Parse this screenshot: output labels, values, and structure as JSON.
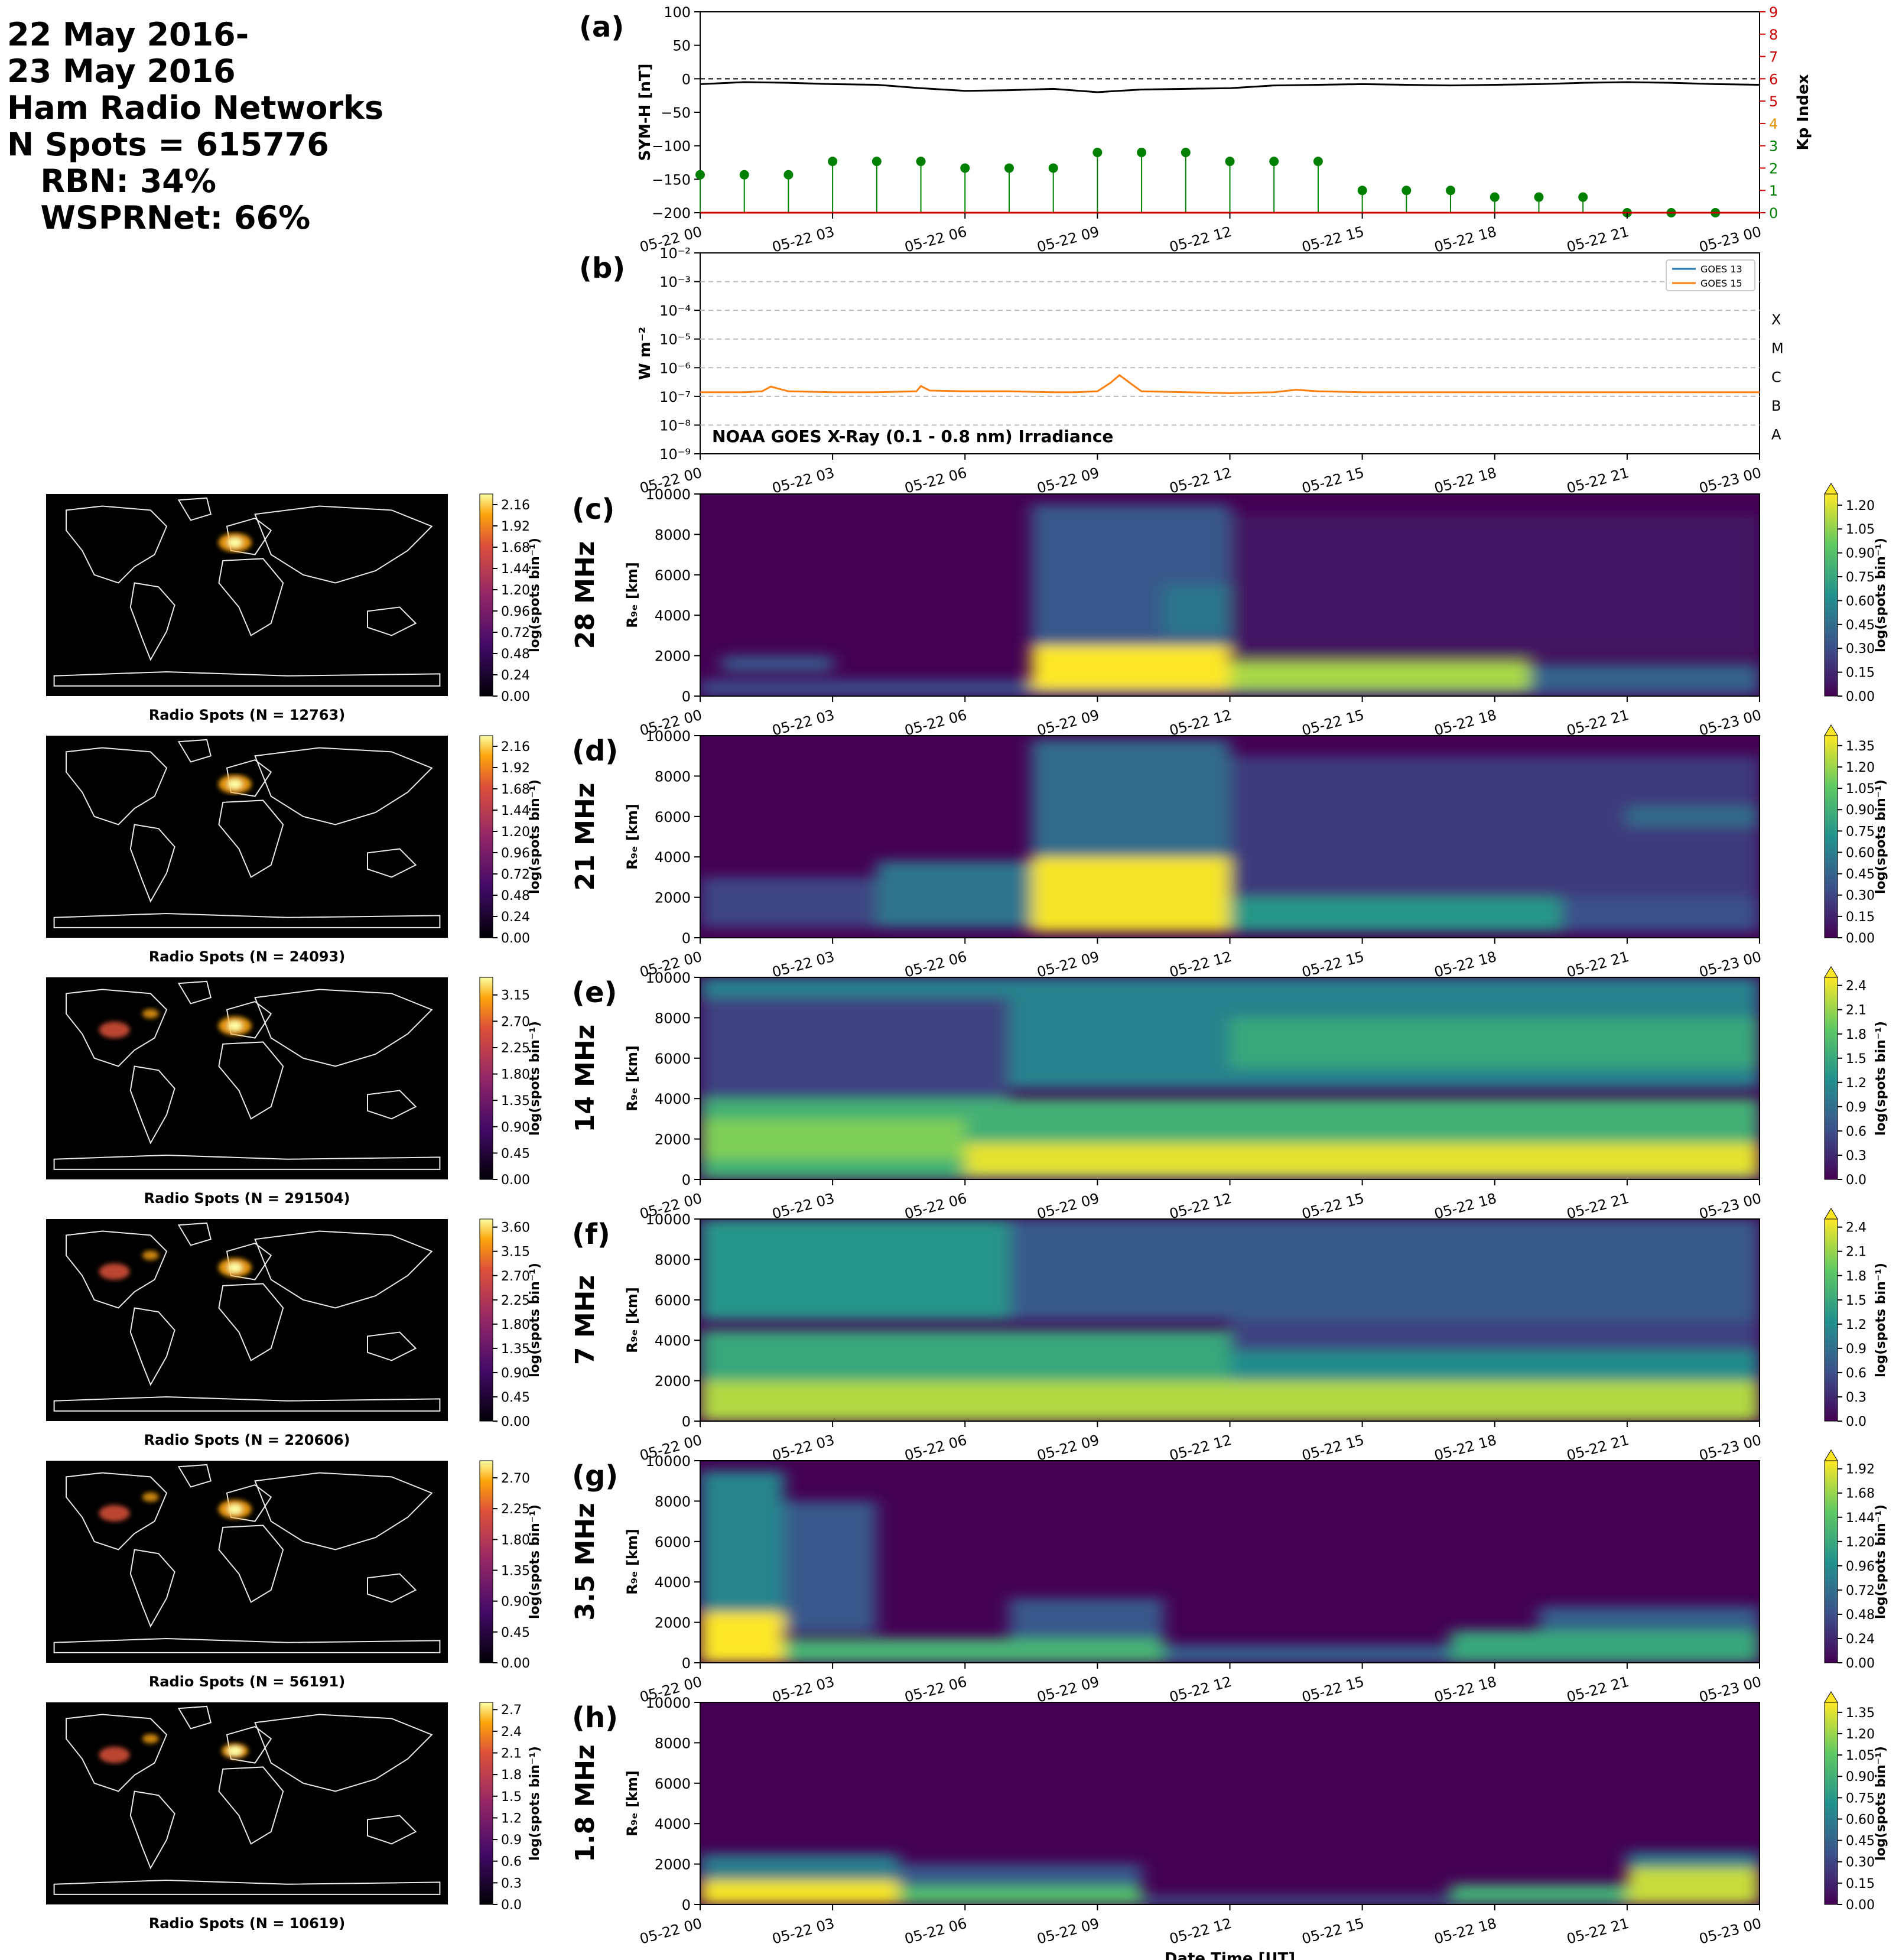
{
  "header": {
    "lines": [
      "22 May 2016-",
      "23 May 2016",
      "Ham Radio Networks",
      "N Spots = 615776",
      "   RBN: 34%",
      "   WSPRNet: 66%"
    ]
  },
  "time_ticks": [
    "05-22 00",
    "05-22 03",
    "05-22 06",
    "05-22 09",
    "05-22 12",
    "05-22 15",
    "05-22 18",
    "05-22 21",
    "05-23 00"
  ],
  "xlabel": "Date Time [UT]",
  "colors": {
    "symh": "#000000",
    "kp_stems": "#008000",
    "kp_axis": "#cc0000",
    "goes13": "#1f77b4",
    "goes15": "#ff7f0e",
    "map_bg": "#000000"
  },
  "chart_data": [
    {
      "type": "line",
      "panel_label": "(a)",
      "ylabel": "SYM-H [nT]",
      "ylim": [
        -200,
        100
      ],
      "yticks": [
        "100",
        "50",
        "0",
        "−50",
        "−100",
        "−150",
        "−200"
      ],
      "y2label": "Kp Index",
      "y2lim": [
        0,
        9
      ],
      "y2ticks": [
        "0",
        "1",
        "2",
        "3",
        "4",
        "5",
        "6",
        "7",
        "8",
        "9"
      ],
      "series": [
        {
          "x_hours": [
            0,
            1,
            2,
            3,
            4,
            5,
            6,
            7,
            8,
            9,
            10,
            11,
            12,
            13,
            14,
            15,
            16,
            17,
            18,
            19,
            20,
            21,
            22,
            23,
            24
          ],
          "values": [
            -8,
            -5,
            -6,
            -8,
            -9,
            -14,
            -18,
            -17,
            -15,
            -20,
            -16,
            -15,
            -14,
            -10,
            -9,
            -8,
            -9,
            -10,
            -9,
            -8,
            -6,
            -5,
            -6,
            -8,
            -9
          ]
        },
        {
          "x_hours": [
            0,
            1,
            2,
            3,
            4,
            5,
            6,
            7,
            8,
            9,
            10,
            11,
            12,
            13,
            14,
            15,
            16,
            17,
            18,
            19,
            20,
            21,
            22,
            23
          ],
          "values": [
            1.7,
            1.7,
            1.7,
            2.3,
            2.3,
            2.3,
            2.0,
            2.0,
            2.0,
            2.7,
            2.7,
            2.7,
            2.3,
            2.3,
            2.3,
            1.0,
            1.0,
            1.0,
            0.7,
            0.7,
            0.7,
            0.0,
            0.0,
            0.0
          ]
        }
      ]
    },
    {
      "type": "line",
      "panel_label": "(b)",
      "ylabel": "W m⁻²",
      "ylim_exp": [
        -9,
        -2
      ],
      "yticks": [
        "10⁻²",
        "10⁻³",
        "10⁻⁴",
        "10⁻⁵",
        "10⁻⁶",
        "10⁻⁷",
        "10⁻⁸",
        "10⁻⁹"
      ],
      "flare_classes": [
        "X",
        "M",
        "C",
        "B",
        "A"
      ],
      "annotation": "NOAA GOES X-Ray (0.1 - 0.8 nm) Irradiance",
      "series": [
        {
          "name": "GOES 13",
          "x_hours": [],
          "values": []
        },
        {
          "name": "GOES 15",
          "x_hours": [
            0,
            1,
            1.4,
            1.6,
            2,
            3,
            4,
            4.9,
            5.0,
            5.2,
            6,
            7,
            8,
            8.5,
            9,
            9.3,
            9.5,
            9.8,
            10,
            11,
            12,
            13,
            13.5,
            14,
            15,
            16,
            17,
            18,
            19,
            20,
            21,
            22,
            23,
            24
          ],
          "values": [
            1.4e-07,
            1.4e-07,
            1.5e-07,
            2.2e-07,
            1.5e-07,
            1.4e-07,
            1.4e-07,
            1.5e-07,
            2.3e-07,
            1.6e-07,
            1.5e-07,
            1.5e-07,
            1.4e-07,
            1.4e-07,
            1.5e-07,
            3e-07,
            5.5e-07,
            2.5e-07,
            1.5e-07,
            1.4e-07,
            1.3e-07,
            1.4e-07,
            1.7e-07,
            1.5e-07,
            1.4e-07,
            1.4e-07,
            1.4e-07,
            1.4e-07,
            1.4e-07,
            1.4e-07,
            1.4e-07,
            1.4e-07,
            1.4e-07,
            1.4e-07
          ]
        }
      ]
    },
    {
      "type": "heatmap",
      "panel_label": "(c)",
      "band": "28 MHz",
      "ylabel": "R₉ₑ [km]",
      "ylim": [
        0,
        10000
      ],
      "cb_label": "log(spots bin⁻¹)",
      "cb_ticks": [
        "0.00",
        "0.15",
        "0.30",
        "0.45",
        "0.60",
        "0.75",
        "0.90",
        "1.05",
        "1.20"
      ],
      "cb_max": 1.27,
      "map_caption": "Radio Spots (N = 12763)",
      "map_cb_ticks": [
        "0.00",
        "0.24",
        "0.48",
        "0.72",
        "0.96",
        "1.20",
        "1.44",
        "1.68",
        "1.92",
        "2.16"
      ],
      "map_cb_max": 2.28,
      "activity": [
        [
          0,
          24,
          0,
          800,
          0.3
        ],
        [
          0.5,
          3,
          1200,
          2000,
          0.35
        ],
        [
          7.5,
          12,
          300,
          2500,
          1.3
        ],
        [
          12,
          18.8,
          300,
          1800,
          1.1
        ],
        [
          18.8,
          24,
          300,
          1600,
          0.4
        ],
        [
          7.5,
          12,
          2500,
          9500,
          0.35
        ],
        [
          10.5,
          12,
          3000,
          5500,
          0.5
        ],
        [
          12,
          24,
          2000,
          9000,
          0.08
        ]
      ]
    },
    {
      "type": "heatmap",
      "panel_label": "(d)",
      "band": "21 MHz",
      "ylabel": "R₉ₑ [km]",
      "ylim": [
        0,
        10000
      ],
      "cb_label": "log(spots bin⁻¹)",
      "cb_ticks": [
        "0.00",
        "0.15",
        "0.30",
        "0.45",
        "0.60",
        "0.75",
        "0.90",
        "1.05",
        "1.20",
        "1.35"
      ],
      "cb_max": 1.42,
      "map_caption": "Radio Spots (N = 24093)",
      "map_cb_ticks": [
        "0.00",
        "0.24",
        "0.48",
        "0.72",
        "0.96",
        "1.20",
        "1.44",
        "1.68",
        "1.92",
        "2.16"
      ],
      "map_cb_max": 2.28,
      "activity": [
        [
          0,
          4,
          500,
          3000,
          0.3
        ],
        [
          4,
          7.5,
          500,
          3800,
          0.55
        ],
        [
          7.5,
          12,
          300,
          4000,
          1.4
        ],
        [
          7.5,
          12,
          4000,
          9800,
          0.5
        ],
        [
          12,
          19.5,
          300,
          2000,
          0.75
        ],
        [
          12,
          24,
          2000,
          9000,
          0.25
        ],
        [
          19.5,
          24,
          300,
          2000,
          0.35
        ],
        [
          21,
          24,
          5500,
          6500,
          0.5
        ]
      ]
    },
    {
      "type": "heatmap",
      "panel_label": "(e)",
      "band": "14 MHz",
      "ylabel": "R₉ₑ [km]",
      "ylim": [
        0,
        10000
      ],
      "cb_label": "log(spots bin⁻¹)",
      "cb_ticks": [
        "0.0",
        "0.3",
        "0.6",
        "0.9",
        "1.2",
        "1.5",
        "1.8",
        "2.1",
        "2.4"
      ],
      "cb_max": 2.5,
      "map_caption": "Radio Spots (N = 291504)",
      "map_cb_ticks": [
        "0.00",
        "0.45",
        "0.90",
        "1.35",
        "1.80",
        "2.25",
        "2.70",
        "3.15"
      ],
      "map_cb_max": 3.45,
      "activity": [
        [
          0,
          24,
          0,
          4000,
          1.6
        ],
        [
          6,
          24,
          200,
          1800,
          2.4
        ],
        [
          0,
          6,
          1000,
          3000,
          2.0
        ],
        [
          0,
          24,
          4500,
          10000,
          1.1
        ],
        [
          12,
          24,
          5500,
          8000,
          1.5
        ],
        [
          0,
          7,
          4000,
          9000,
          0.5
        ]
      ]
    },
    {
      "type": "heatmap",
      "panel_label": "(f)",
      "band": "7 MHz",
      "ylabel": "R₉ₑ [km]",
      "ylim": [
        0,
        10000
      ],
      "cb_label": "log(spots bin⁻¹)",
      "cb_ticks": [
        "0.0",
        "0.3",
        "0.6",
        "0.9",
        "1.2",
        "1.5",
        "1.8",
        "2.1",
        "2.4"
      ],
      "cb_max": 2.5,
      "map_caption": "Radio Spots (N = 220606)",
      "map_cb_ticks": [
        "0.00",
        "0.45",
        "0.90",
        "1.35",
        "1.80",
        "2.25",
        "2.70",
        "3.15",
        "3.60"
      ],
      "map_cb_max": 3.75,
      "activity": [
        [
          0,
          24,
          0,
          2000,
          2.2
        ],
        [
          0,
          12,
          2000,
          4500,
          1.5
        ],
        [
          0,
          7,
          5000,
          10000,
          1.3
        ],
        [
          7,
          24,
          5000,
          10000,
          0.7
        ],
        [
          12,
          24,
          2000,
          3500,
          1.2
        ],
        [
          12,
          24,
          3500,
          5000,
          0.5
        ]
      ]
    },
    {
      "type": "heatmap",
      "panel_label": "(g)",
      "band": "3.5 MHz",
      "ylabel": "R₉ₑ [km]",
      "ylim": [
        0,
        10000
      ],
      "cb_label": "log(spots bin⁻¹)",
      "cb_ticks": [
        "0.00",
        "0.24",
        "0.48",
        "0.72",
        "0.96",
        "1.20",
        "1.44",
        "1.68",
        "1.92"
      ],
      "cb_max": 2.0,
      "map_caption": "Radio Spots (N = 56191)",
      "map_cb_ticks": [
        "0.00",
        "0.45",
        "0.90",
        "1.35",
        "1.80",
        "2.25",
        "2.70"
      ],
      "map_cb_max": 2.95,
      "activity": [
        [
          0,
          1.9,
          0,
          2500,
          2.0
        ],
        [
          0,
          1.9,
          2500,
          9500,
          0.9
        ],
        [
          1.9,
          4,
          1500,
          8000,
          0.55
        ],
        [
          1.9,
          10.5,
          0,
          1200,
          1.3
        ],
        [
          7,
          10.5,
          1200,
          3200,
          0.55
        ],
        [
          10.5,
          17,
          0,
          900,
          0.6
        ],
        [
          17,
          24,
          0,
          1600,
          1.2
        ],
        [
          19,
          24,
          1600,
          2800,
          0.6
        ]
      ]
    },
    {
      "type": "heatmap",
      "panel_label": "(h)",
      "band": "1.8 MHz",
      "ylabel": "R₉ₑ [km]",
      "ylim": [
        0,
        10000
      ],
      "cb_label": "log(spots bin⁻¹)",
      "cb_ticks": [
        "0.00",
        "0.15",
        "0.30",
        "0.45",
        "0.60",
        "0.75",
        "0.90",
        "1.05",
        "1.20",
        "1.35"
      ],
      "cb_max": 1.42,
      "map_caption": "Radio Spots (N = 10619)",
      "map_cb_ticks": [
        "0.0",
        "0.3",
        "0.6",
        "0.9",
        "1.2",
        "1.5",
        "1.8",
        "2.1",
        "2.4",
        "2.7"
      ],
      "map_cb_max": 2.8,
      "activity": [
        [
          0,
          4.5,
          0,
          1200,
          1.4
        ],
        [
          0,
          4.5,
          1200,
          2500,
          0.6
        ],
        [
          4.5,
          10,
          0,
          900,
          1.0
        ],
        [
          4.5,
          10,
          900,
          2000,
          0.4
        ],
        [
          10,
          17,
          0,
          400,
          0.4
        ],
        [
          17,
          21,
          0,
          1000,
          0.9
        ],
        [
          21,
          24,
          0,
          1800,
          1.3
        ],
        [
          21,
          24,
          1800,
          2600,
          0.6
        ]
      ]
    }
  ]
}
